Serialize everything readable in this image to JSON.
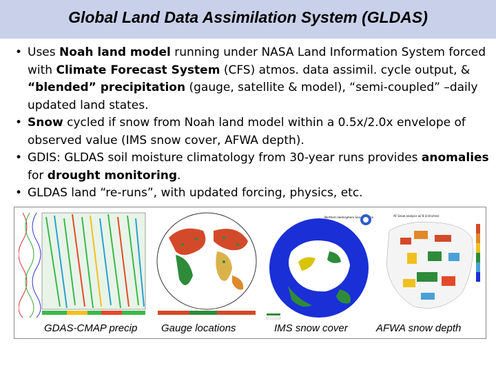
{
  "slide": {
    "title": "Global Land Data Assimilation System (GLDAS)"
  },
  "bullets": [
    {
      "parts": [
        {
          "t": "Uses ",
          "b": false
        },
        {
          "t": "Noah land model",
          "b": true
        },
        {
          "t": " running under NASA Land Information System forced with ",
          "b": false
        },
        {
          "t": "Climate Forecast System",
          "b": true
        },
        {
          "t": " (CFS) atmos. data assimil. cycle output, & ",
          "b": false
        },
        {
          "t": "“blended” precipitation",
          "b": true
        },
        {
          "t": " (gauge, satellite & model), “semi-coupled” –daily updated land states.",
          "b": false
        }
      ]
    },
    {
      "parts": [
        {
          "t": "Snow",
          "b": true
        },
        {
          "t": " cycled if snow from Noah land model within a 0.5x/2.0x envelope of observed value (IMS snow cover, AFWA depth).",
          "b": false
        }
      ]
    },
    {
      "parts": [
        {
          "t": "GDIS:  GLDAS soil moisture climatology from 30-year runs provides ",
          "b": false
        },
        {
          "t": "anomalies",
          "b": true
        },
        {
          "t": " for ",
          "b": false
        },
        {
          "t": "drought monitoring",
          "b": true
        },
        {
          "t": ".",
          "b": false
        }
      ]
    },
    {
      "parts": [
        {
          "t": "GLDAS land “re-runs”, with updated forcing, physics, etc.",
          "b": false
        }
      ]
    }
  ],
  "figures": {
    "captions": {
      "cmap": "GDAS-CMAP precip",
      "gauge": "Gauge locations",
      "ims": "IMS snow cover",
      "afwa": "AFWA snow depth"
    },
    "ims_title": "Northern Hemisphere Snow and Ice",
    "afwa_title": "AF Snow analysis w/ 8 (in/inches)",
    "colors": {
      "ocean": "#1a2fd6",
      "land_green": "#2e8b3a",
      "snow": "#ffffff",
      "desert": "#d9b24a"
    }
  }
}
